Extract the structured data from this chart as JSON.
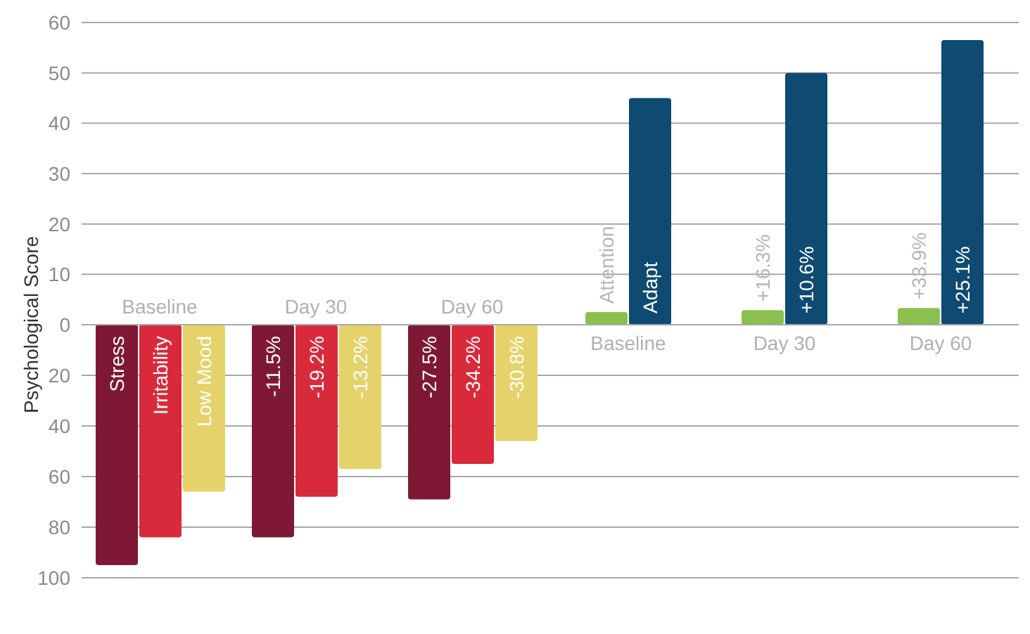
{
  "chart_data": [
    {
      "type": "bar",
      "ylabel": "Psychological Score",
      "categories": [
        null,
        null,
        null,
        "Baseline",
        "Day 30",
        "Day 60"
      ],
      "ylim": [
        0,
        60
      ],
      "yticks": [
        0,
        10,
        20,
        30,
        40,
        50,
        60
      ],
      "grid": "y",
      "series": [
        {
          "name": "Attention",
          "color": "#8cc04e",
          "values": [
            null,
            null,
            null,
            2.5,
            2.9,
            3.3
          ]
        },
        {
          "name": "Adapt",
          "color": "#0f4a72",
          "values": [
            null,
            null,
            null,
            45,
            50,
            56.5
          ]
        }
      ],
      "annotations": [
        "+16.3%",
        "+33.9%",
        "+10.6%",
        "+25.1%"
      ]
    },
    {
      "type": "bar",
      "categories": [
        "Baseline",
        "Day 30",
        "Day 60",
        null,
        null,
        null
      ],
      "ylim": [
        100,
        0
      ],
      "yticks": [
        20,
        40,
        60,
        80,
        100
      ],
      "grid": "y",
      "series": [
        {
          "name": "Stress",
          "color": "#7e1834",
          "values": [
            95,
            84,
            69,
            null,
            null,
            null
          ]
        },
        {
          "name": "Irritability",
          "color": "#d92a3c",
          "values": [
            84,
            68,
            55,
            null,
            null,
            null
          ]
        },
        {
          "name": "Low Mood",
          "color": "#e6d26a",
          "values": [
            66,
            57,
            46,
            null,
            null,
            null
          ]
        }
      ],
      "annotations": [
        "-11.5%",
        "-27.5%",
        "-19.2%",
        "-34.2%",
        "-13.2%",
        "-30.8%"
      ]
    }
  ]
}
